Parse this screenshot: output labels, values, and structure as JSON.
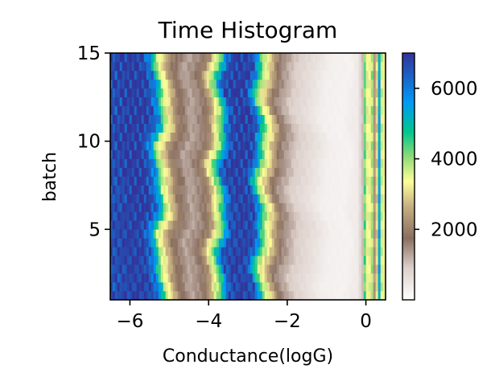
{
  "chart_data": {
    "type": "heatmap",
    "title": "Time Histogram",
    "xlabel": "Conductance(logG)",
    "ylabel": "batch",
    "xlim": [
      -6.5,
      0.5
    ],
    "ylim": [
      1,
      15
    ],
    "xticks": [
      -6,
      -4,
      -2,
      0
    ],
    "xtick_labels": [
      "−6",
      "−4",
      "−2",
      "0"
    ],
    "yticks": [
      5,
      10,
      15
    ],
    "ytick_labels": [
      "5",
      "10",
      "15"
    ],
    "colormap": "terrain",
    "colorbar": {
      "range": [
        0,
        7000
      ],
      "ticks": [
        2000,
        4000,
        6000
      ],
      "tick_labels": [
        "2000",
        "4000",
        "6000"
      ]
    },
    "profile": {
      "x": [
        -6.5,
        -6.0,
        -5.6,
        -5.35,
        -5.2,
        -5.05,
        -4.85,
        -4.5,
        -4.2,
        -4.0,
        -3.85,
        -3.72,
        -3.62,
        -3.5,
        -3.2,
        -2.9,
        -2.75,
        -2.6,
        -2.45,
        -2.2,
        -1.8,
        -1.4,
        -1.0,
        -0.5,
        -0.2,
        -0.05,
        0.0,
        0.05,
        0.15,
        0.25,
        0.35,
        0.45,
        0.5
      ],
      "values": [
        6600,
        6900,
        6800,
        5800,
        3800,
        3100,
        2000,
        1250,
        1600,
        2300,
        3600,
        4300,
        5600,
        6600,
        6900,
        6700,
        5200,
        3700,
        3000,
        1600,
        900,
        600,
        300,
        250,
        400,
        1200,
        6600,
        2500,
        4200,
        1600,
        5500,
        2200,
        5000
      ]
    }
  }
}
